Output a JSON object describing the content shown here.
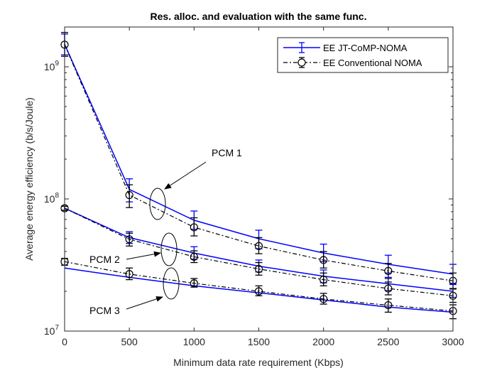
{
  "chart_data": {
    "type": "line",
    "title": "Res. alloc. and evaluation with the same func.",
    "xlabel": "Minimum data rate requirement (Kbps)",
    "ylabel": "Average energy efficiency (b/s/Joule)",
    "xlim": [
      0,
      3000
    ],
    "ylim": [
      10000000,
      2000000000
    ],
    "yscale": "log",
    "xticks": [
      "0",
      "500",
      "1000",
      "1500",
      "2000",
      "2500",
      "3000"
    ],
    "yticks": [
      {
        "value": 10000000,
        "base": "10",
        "exp": "7"
      },
      {
        "value": 100000000,
        "base": "10",
        "exp": "8"
      },
      {
        "value": 1000000000,
        "base": "10",
        "exp": "9"
      }
    ],
    "grid": false,
    "legend_position": "top-right",
    "x": [
      0,
      500,
      1000,
      1500,
      2000,
      2500,
      3000
    ],
    "series": [
      {
        "name": "EE JT-CoMP-NOMA",
        "group": "PCM 1",
        "color": "#0000ff",
        "style": "solid",
        "marker": "none",
        "values": [
          1480000000,
          118000000,
          69000000,
          50000000,
          39000000,
          32000000,
          27000000
        ],
        "err_low": [
          1230000000,
          95000000,
          59000000,
          42000000,
          33500000,
          27500000,
          23000000
        ],
        "err_high": [
          1770000000,
          142000000,
          81000000,
          58000000,
          45500000,
          37500000,
          32000000
        ]
      },
      {
        "name": "EE Conventional NOMA",
        "group": "PCM 1",
        "color": "#000000",
        "style": "dashdot",
        "marker": "circle",
        "values": [
          1470000000,
          107000000,
          61000000,
          44000000,
          34500000,
          28500000,
          24000000
        ],
        "err_low": [
          1200000000,
          86000000,
          52500000,
          38500000,
          30000000,
          25000000,
          21000000
        ],
        "err_high": [
          1820000000,
          128000000,
          72000000,
          51000000,
          40000000,
          32500000,
          27500000
        ]
      },
      {
        "name": "",
        "group": "PCM 2",
        "color": "#0000ff",
        "style": "solid",
        "marker": "none",
        "values": [
          85000000,
          51000000,
          39000000,
          31000000,
          26000000,
          22800000,
          20000000
        ],
        "err_low": [
          82000000,
          46000000,
          35000000,
          28000000,
          23200000,
          20300000,
          18000000
        ],
        "err_high": [
          88000000,
          56500000,
          43500000,
          34500000,
          29000000,
          25500000,
          22500000
        ]
      },
      {
        "name": "",
        "group": "PCM 2",
        "color": "#000000",
        "style": "dashdot",
        "marker": "circle",
        "values": [
          85000000,
          49500000,
          36500000,
          29500000,
          24500000,
          21000000,
          18500000
        ],
        "err_low": [
          82000000,
          44000000,
          33000000,
          26500000,
          22000000,
          18800000,
          16500000
        ],
        "err_high": [
          88000000,
          55000000,
          40500000,
          33000000,
          27500000,
          23500000,
          20800000
        ]
      },
      {
        "name": "",
        "group": "PCM 3",
        "color": "#0000ff",
        "style": "solid",
        "marker": "none",
        "values": [
          30000000,
          25500000,
          22000000,
          19500000,
          17200000,
          15200000,
          13900000
        ],
        "err_low": [
          30000000,
          25500000,
          22000000,
          19500000,
          17200000,
          15200000,
          13900000
        ],
        "err_high": [
          30000000,
          25500000,
          22000000,
          19500000,
          17200000,
          15200000,
          13900000
        ]
      },
      {
        "name": "",
        "group": "PCM 3",
        "color": "#000000",
        "style": "dashdot",
        "marker": "circle",
        "values": [
          33500000,
          27000000,
          23000000,
          20000000,
          17500000,
          15700000,
          14200000
        ],
        "err_low": [
          31500000,
          24500000,
          21500000,
          18500000,
          16000000,
          13900000,
          12400000
        ],
        "err_high": [
          35500000,
          30000000,
          25000000,
          22000000,
          19300000,
          17500000,
          15800000
        ]
      }
    ],
    "annotations": [
      {
        "text": "PCM 1",
        "target": "PCM 1"
      },
      {
        "text": "PCM 2",
        "target": "PCM 2"
      },
      {
        "text": "PCM 3",
        "target": "PCM 3"
      }
    ]
  }
}
